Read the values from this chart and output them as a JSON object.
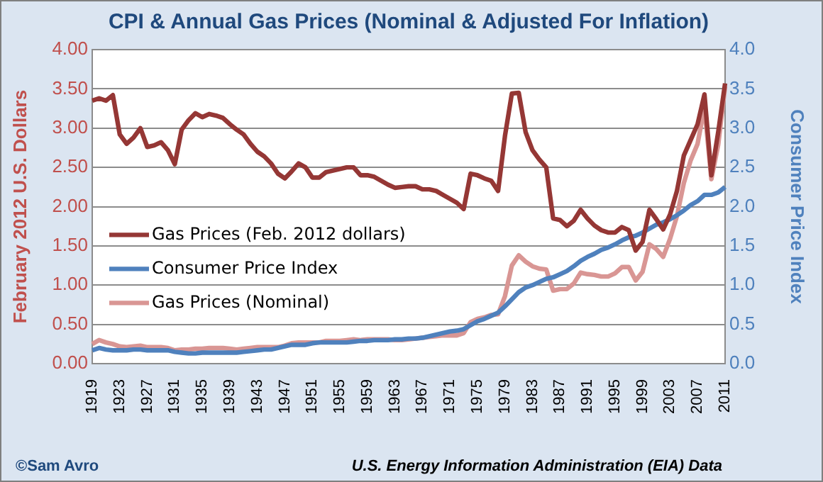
{
  "chart_data": {
    "type": "line",
    "title": "CPI & Annual Gas Prices (Nominal & Adjusted For Inflation)",
    "ylabel": "February 2012 U.S. Dollars",
    "y2label": "Consumer Price Index",
    "categories": [
      "1919",
      null,
      null,
      null,
      "1923",
      null,
      null,
      null,
      "1927",
      null,
      null,
      null,
      "1931",
      null,
      null,
      null,
      "1935",
      null,
      null,
      null,
      "1939",
      null,
      null,
      null,
      "1943",
      null,
      null,
      null,
      "1947",
      null,
      null,
      null,
      "1951",
      null,
      null,
      null,
      "1955",
      null,
      null,
      null,
      "1959",
      null,
      null,
      null,
      "1963",
      null,
      null,
      null,
      "1967",
      null,
      null,
      null,
      "1971",
      null,
      null,
      null,
      "1975",
      null,
      null,
      null,
      "1979",
      null,
      null,
      null,
      "1983",
      null,
      null,
      null,
      "1987",
      null,
      null,
      null,
      "1991",
      null,
      null,
      null,
      "1995",
      null,
      null,
      null,
      "1999",
      null,
      null,
      null,
      "2003",
      null,
      null,
      null,
      "2007",
      null,
      null,
      null,
      "2011"
    ],
    "series": [
      {
        "name": "Gas Prices (Feb. 2012 dollars)",
        "color": "#953735",
        "values": [
          3.35,
          3.38,
          3.35,
          3.42,
          2.92,
          2.8,
          2.88,
          3.0,
          2.76,
          2.78,
          2.82,
          2.72,
          2.54,
          2.98,
          3.1,
          3.19,
          3.14,
          3.18,
          3.16,
          3.13,
          3.05,
          2.98,
          2.92,
          2.8,
          2.7,
          2.64,
          2.55,
          2.42,
          2.36,
          2.45,
          2.55,
          2.5,
          2.37,
          2.37,
          2.44,
          2.46,
          2.48,
          2.5,
          2.5,
          2.4,
          2.4,
          2.38,
          2.33,
          2.28,
          2.24,
          2.25,
          2.26,
          2.26,
          2.22,
          2.22,
          2.2,
          2.15,
          2.1,
          2.05,
          1.97,
          2.42,
          2.4,
          2.36,
          2.33,
          2.2,
          2.9,
          3.44,
          3.45,
          2.95,
          2.72,
          2.6,
          2.5,
          1.85,
          1.83,
          1.75,
          1.82,
          1.96,
          1.85,
          1.76,
          1.7,
          1.67,
          1.67,
          1.74,
          1.7,
          1.44,
          1.55,
          1.96,
          1.84,
          1.71,
          1.9,
          2.2,
          2.65,
          2.85,
          3.05,
          3.43,
          2.4,
          2.95,
          3.57
        ]
      },
      {
        "name": "Consumer Price Index",
        "color": "#4f81bd",
        "axis": "y2",
        "values": [
          0.17,
          0.2,
          0.18,
          0.17,
          0.17,
          0.17,
          0.18,
          0.18,
          0.17,
          0.17,
          0.17,
          0.17,
          0.15,
          0.14,
          0.13,
          0.13,
          0.14,
          0.14,
          0.14,
          0.14,
          0.14,
          0.14,
          0.15,
          0.16,
          0.17,
          0.18,
          0.18,
          0.2,
          0.22,
          0.24,
          0.24,
          0.24,
          0.26,
          0.27,
          0.27,
          0.27,
          0.27,
          0.27,
          0.28,
          0.29,
          0.29,
          0.3,
          0.3,
          0.3,
          0.31,
          0.31,
          0.32,
          0.32,
          0.33,
          0.35,
          0.37,
          0.39,
          0.41,
          0.42,
          0.44,
          0.49,
          0.54,
          0.57,
          0.61,
          0.65,
          0.73,
          0.82,
          0.91,
          0.97,
          1.0,
          1.04,
          1.08,
          1.1,
          1.14,
          1.18,
          1.24,
          1.31,
          1.36,
          1.4,
          1.45,
          1.48,
          1.52,
          1.57,
          1.61,
          1.63,
          1.67,
          1.72,
          1.77,
          1.8,
          1.84,
          1.89,
          1.95,
          2.02,
          2.07,
          2.15,
          2.15,
          2.18,
          2.25
        ]
      },
      {
        "name": "Gas Prices (Nominal)",
        "color": "#d99694",
        "values": [
          0.25,
          0.3,
          0.27,
          0.25,
          0.22,
          0.21,
          0.22,
          0.23,
          0.21,
          0.21,
          0.21,
          0.2,
          0.17,
          0.18,
          0.18,
          0.19,
          0.19,
          0.2,
          0.2,
          0.2,
          0.19,
          0.18,
          0.19,
          0.2,
          0.21,
          0.21,
          0.21,
          0.21,
          0.23,
          0.26,
          0.27,
          0.27,
          0.27,
          0.27,
          0.29,
          0.29,
          0.29,
          0.3,
          0.31,
          0.3,
          0.31,
          0.31,
          0.31,
          0.31,
          0.3,
          0.3,
          0.31,
          0.32,
          0.33,
          0.34,
          0.35,
          0.36,
          0.36,
          0.36,
          0.39,
          0.53,
          0.57,
          0.59,
          0.62,
          0.63,
          0.86,
          1.25,
          1.38,
          1.3,
          1.24,
          1.21,
          1.2,
          0.93,
          0.95,
          0.95,
          1.02,
          1.16,
          1.14,
          1.13,
          1.11,
          1.11,
          1.15,
          1.23,
          1.23,
          1.06,
          1.17,
          1.52,
          1.46,
          1.36,
          1.59,
          1.88,
          2.3,
          2.59,
          2.8,
          3.27,
          2.35,
          2.79,
          3.53
        ]
      }
    ],
    "ylim": [
      0,
      4
    ],
    "yticks": [
      {
        "value": 0,
        "label": "0.00"
      },
      {
        "value": 0.5,
        "label": "0.50"
      },
      {
        "value": 1,
        "label": "1.00"
      },
      {
        "value": 1.5,
        "label": "1.50"
      },
      {
        "value": 2,
        "label": "2.00"
      },
      {
        "value": 2.5,
        "label": "2.50"
      },
      {
        "value": 3,
        "label": "3.00"
      },
      {
        "value": 3.5,
        "label": "3.50"
      },
      {
        "value": 4,
        "label": "4.00"
      }
    ],
    "y2lim": [
      0,
      4
    ],
    "y2ticks": [
      {
        "value": 0,
        "label": "0.0"
      },
      {
        "value": 0.5,
        "label": "0.5"
      },
      {
        "value": 1,
        "label": "1.0"
      },
      {
        "value": 1.5,
        "label": "1.5"
      },
      {
        "value": 2,
        "label": "2.0"
      },
      {
        "value": 2.5,
        "label": "2.5"
      },
      {
        "value": 3,
        "label": "3.0"
      },
      {
        "value": 3.5,
        "label": "3.5"
      },
      {
        "value": 4,
        "label": "4.0"
      }
    ],
    "grid": "y",
    "legend": "left",
    "marker": "none",
    "line_style": "solid",
    "annotations": [
      "©Sam Avro",
      "U.S. Energy Information Administration (EIA) Data"
    ]
  }
}
